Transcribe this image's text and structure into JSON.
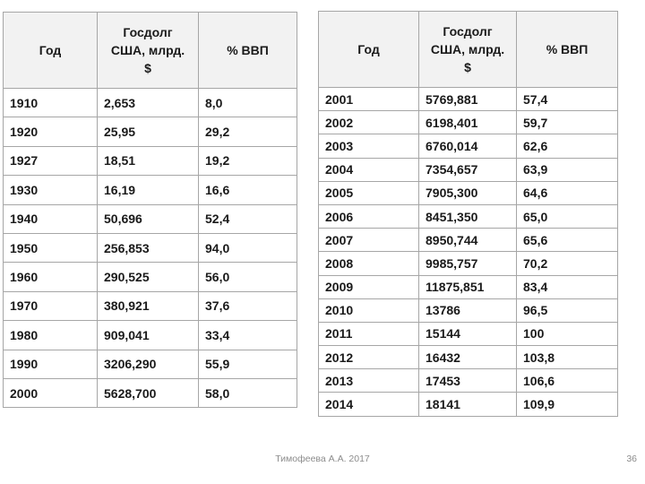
{
  "colors": {
    "header_bg": "#f2f2f2",
    "border": "#a6a6a6",
    "text": "#1a1a1a",
    "footer_text": "#8c8c8c",
    "slide_bg": "#ffffff"
  },
  "tables": {
    "historical": {
      "headers": [
        "Год",
        "Госдолг США, млрд. $",
        "% ВВП"
      ],
      "rows": [
        [
          "1910",
          "2,653",
          "8,0"
        ],
        [
          "1920",
          "25,95",
          "29,2"
        ],
        [
          "1927",
          "18,51",
          "19,2"
        ],
        [
          "1930",
          "16,19",
          "16,6"
        ],
        [
          "1940",
          "50,696",
          "52,4"
        ],
        [
          "1950",
          "256,853",
          "94,0"
        ],
        [
          "1960",
          "290,525",
          "56,0"
        ],
        [
          "1970",
          "380,921",
          "37,6"
        ],
        [
          "1980",
          "909,041",
          "33,4"
        ],
        [
          "1990",
          "3206,290",
          "55,9"
        ],
        [
          "2000",
          "5628,700",
          "58,0"
        ]
      ]
    },
    "modern": {
      "headers": [
        "Год",
        "Госдолг США, млрд. $",
        "% ВВП"
      ],
      "rows": [
        [
          "2001",
          "5769,881",
          "57,4"
        ],
        [
          "2002",
          "6198,401",
          "59,7"
        ],
        [
          "2003",
          "6760,014",
          "62,6"
        ],
        [
          "2004",
          "7354,657",
          "63,9"
        ],
        [
          "2005",
          "7905,300",
          "64,6"
        ],
        [
          "2006",
          "8451,350",
          "65,0"
        ],
        [
          "2007",
          "8950,744",
          "65,6"
        ],
        [
          "2008",
          "9985,757",
          "70,2"
        ],
        [
          "2009",
          "11875,851",
          "83,4"
        ],
        [
          "2010",
          "13786",
          "96,5"
        ],
        [
          "2011",
          "15144",
          "100"
        ],
        [
          "2012",
          "16432",
          "103,8"
        ],
        [
          "2013",
          "17453",
          "106,6"
        ],
        [
          "2014",
          "18141",
          "109,9"
        ]
      ]
    }
  },
  "slide": {
    "footer_author": "Тимофеева А.А. 2017",
    "page_number": "36"
  }
}
